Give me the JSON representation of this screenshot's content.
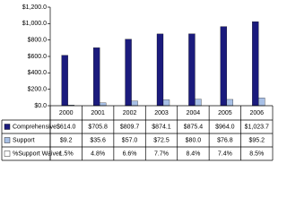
{
  "chart_data": {
    "type": "bar",
    "categories": [
      "2000",
      "2001",
      "2002",
      "2003",
      "2004",
      "2005",
      "2006"
    ],
    "series": [
      {
        "name": "Comprehensive",
        "color": "#1b1b7d",
        "values": [
          614.0,
          705.8,
          809.7,
          874.1,
          875.4,
          964.0,
          1023.7
        ],
        "value_labels": [
          "$614.0",
          "$705.8",
          "$809.7",
          "$874.1",
          "$875.4",
          "$964.0",
          "$1,023.7"
        ]
      },
      {
        "name": "Support",
        "color": "#a8c0e6",
        "values": [
          9.2,
          35.6,
          57.0,
          72.5,
          80.0,
          76.8,
          95.2
        ],
        "value_labels": [
          "$9.2",
          "$35.6",
          "$57.0",
          "$72.5",
          "$80.0",
          "$76.8",
          "$95.2"
        ]
      }
    ],
    "table_rows": [
      {
        "name": "%Support Waiver",
        "cells": [
          "1.5%",
          "4.8%",
          "6.6%",
          "7.7%",
          "8.4%",
          "7.4%",
          "8.5%"
        ]
      }
    ],
    "ylim": [
      0,
      1200
    ],
    "yticks": [
      {
        "value": 0,
        "label": "$0.0"
      },
      {
        "value": 200,
        "label": "$200.0"
      },
      {
        "value": 400,
        "label": "$400.0"
      },
      {
        "value": 600,
        "label": "$600.0"
      },
      {
        "value": 800,
        "label": "$800.0"
      },
      {
        "value": 1000,
        "label": "$1,000.0"
      },
      {
        "value": 1200,
        "label": "$1,200.0"
      }
    ]
  }
}
